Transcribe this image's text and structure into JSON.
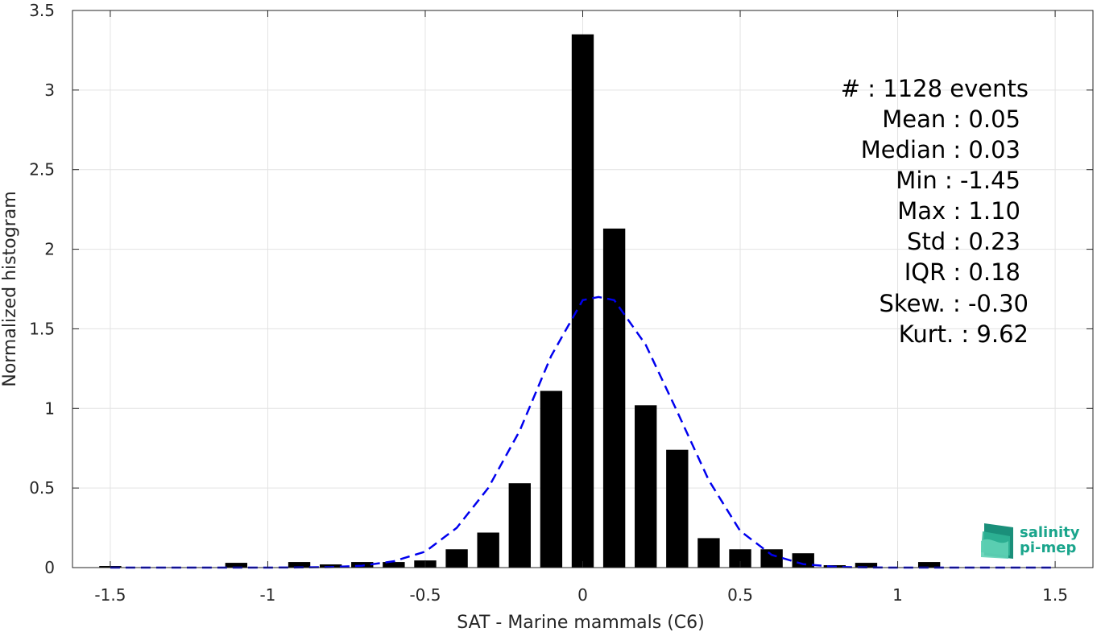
{
  "chart_data": {
    "type": "bar",
    "xlabel": "SAT - Marine mammals (C6)",
    "ylabel": "Normalized histogram",
    "xlim": [
      -1.62,
      1.62
    ],
    "ylim": [
      0,
      3.5
    ],
    "xticks": [
      -1.5,
      -1,
      -0.5,
      0,
      0.5,
      1,
      1.5
    ],
    "xtick_labels": [
      "-1.5",
      "-1",
      "-0.5",
      "0",
      "0.5",
      "1",
      "1.5"
    ],
    "yticks": [
      0,
      0.5,
      1,
      1.5,
      2,
      2.5,
      3,
      3.5
    ],
    "ytick_labels": [
      "0",
      "0.5",
      "1",
      "1.5",
      "2",
      "2.5",
      "3",
      "3.5"
    ],
    "grid": true,
    "bar_width": 0.07,
    "bars": {
      "x": [
        -1.5,
        -1.1,
        -0.9,
        -0.8,
        -0.7,
        -0.6,
        -0.5,
        -0.4,
        -0.3,
        -0.2,
        -0.1,
        0.0,
        0.1,
        0.2,
        0.3,
        0.4,
        0.5,
        0.6,
        0.7,
        0.8,
        0.9,
        1.1
      ],
      "values": [
        0.01,
        0.03,
        0.035,
        0.02,
        0.035,
        0.035,
        0.045,
        0.115,
        0.22,
        0.53,
        1.11,
        3.35,
        2.13,
        1.02,
        0.74,
        0.185,
        0.115,
        0.115,
        0.09,
        0.015,
        0.03,
        0.035
      ],
      "color": "#000000"
    },
    "fit_curve": {
      "style": "dashed",
      "color": "#0000ee",
      "x": [
        -1.5,
        -1.4,
        -1.3,
        -1.2,
        -1.1,
        -1.0,
        -0.9,
        -0.8,
        -0.7,
        -0.6,
        -0.5,
        -0.4,
        -0.3,
        -0.2,
        -0.1,
        0.0,
        0.05,
        0.1,
        0.2,
        0.3,
        0.4,
        0.5,
        0.6,
        0.7,
        0.8,
        0.9,
        1.0,
        1.1,
        1.2,
        1.3,
        1.4,
        1.5
      ],
      "y": [
        0,
        0,
        0,
        0,
        0,
        0,
        0.001,
        0.003,
        0.012,
        0.04,
        0.1,
        0.25,
        0.5,
        0.86,
        1.33,
        1.68,
        1.7,
        1.68,
        1.4,
        0.98,
        0.55,
        0.23,
        0.08,
        0.022,
        0.005,
        0.001,
        0,
        0,
        0,
        0,
        0,
        0
      ]
    }
  },
  "stats": {
    "lines": [
      "#  : 1128 events",
      "Mean : 0.05",
      "Median : 0.03",
      "Min : -1.45",
      "Max : 1.10",
      "Std : 0.23",
      "IQR : 0.18",
      "Skew. : -0.30",
      "Kurt. : 9.62"
    ]
  },
  "logo": {
    "line1": "salinity",
    "line2": "pi-mep",
    "colors": {
      "text": "#1aa58c",
      "mark_dark": "#1a8f7a",
      "mark_light": "#5fd1b5"
    }
  }
}
